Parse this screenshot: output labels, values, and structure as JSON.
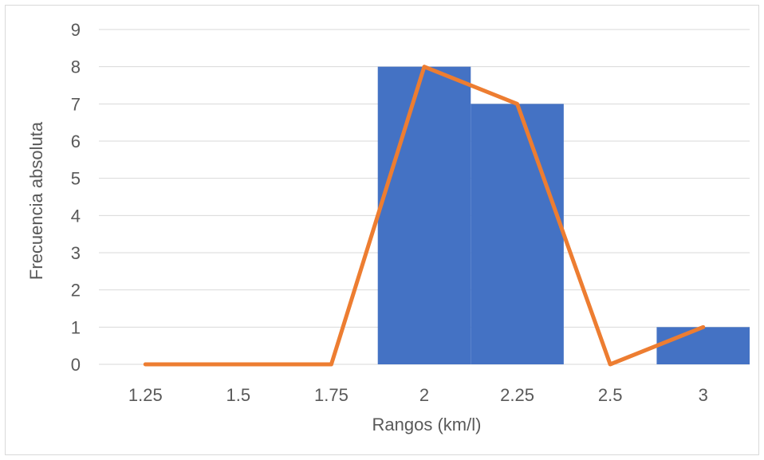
{
  "chart_data": {
    "type": "bar",
    "categories": [
      "1.25",
      "1.5",
      "1.75",
      "2",
      "2.25",
      "2.5",
      "3"
    ],
    "series": [
      {
        "values": [
          0,
          0,
          0,
          8,
          7,
          0,
          1
        ],
        "color": "#4472c4",
        "type": "bar"
      },
      {
        "values": [
          0,
          0,
          0,
          8,
          7,
          0,
          1
        ],
        "color": "#ed7d31",
        "type": "line"
      }
    ],
    "y_ticks": [
      "0",
      "1",
      "2",
      "3",
      "4",
      "5",
      "6",
      "7",
      "8",
      "9"
    ],
    "ylim": [
      0,
      9
    ],
    "xlabel": "Rangos (km/l)",
    "ylabel": "Frecuencia absoluta",
    "grid": true,
    "legend": "none"
  }
}
